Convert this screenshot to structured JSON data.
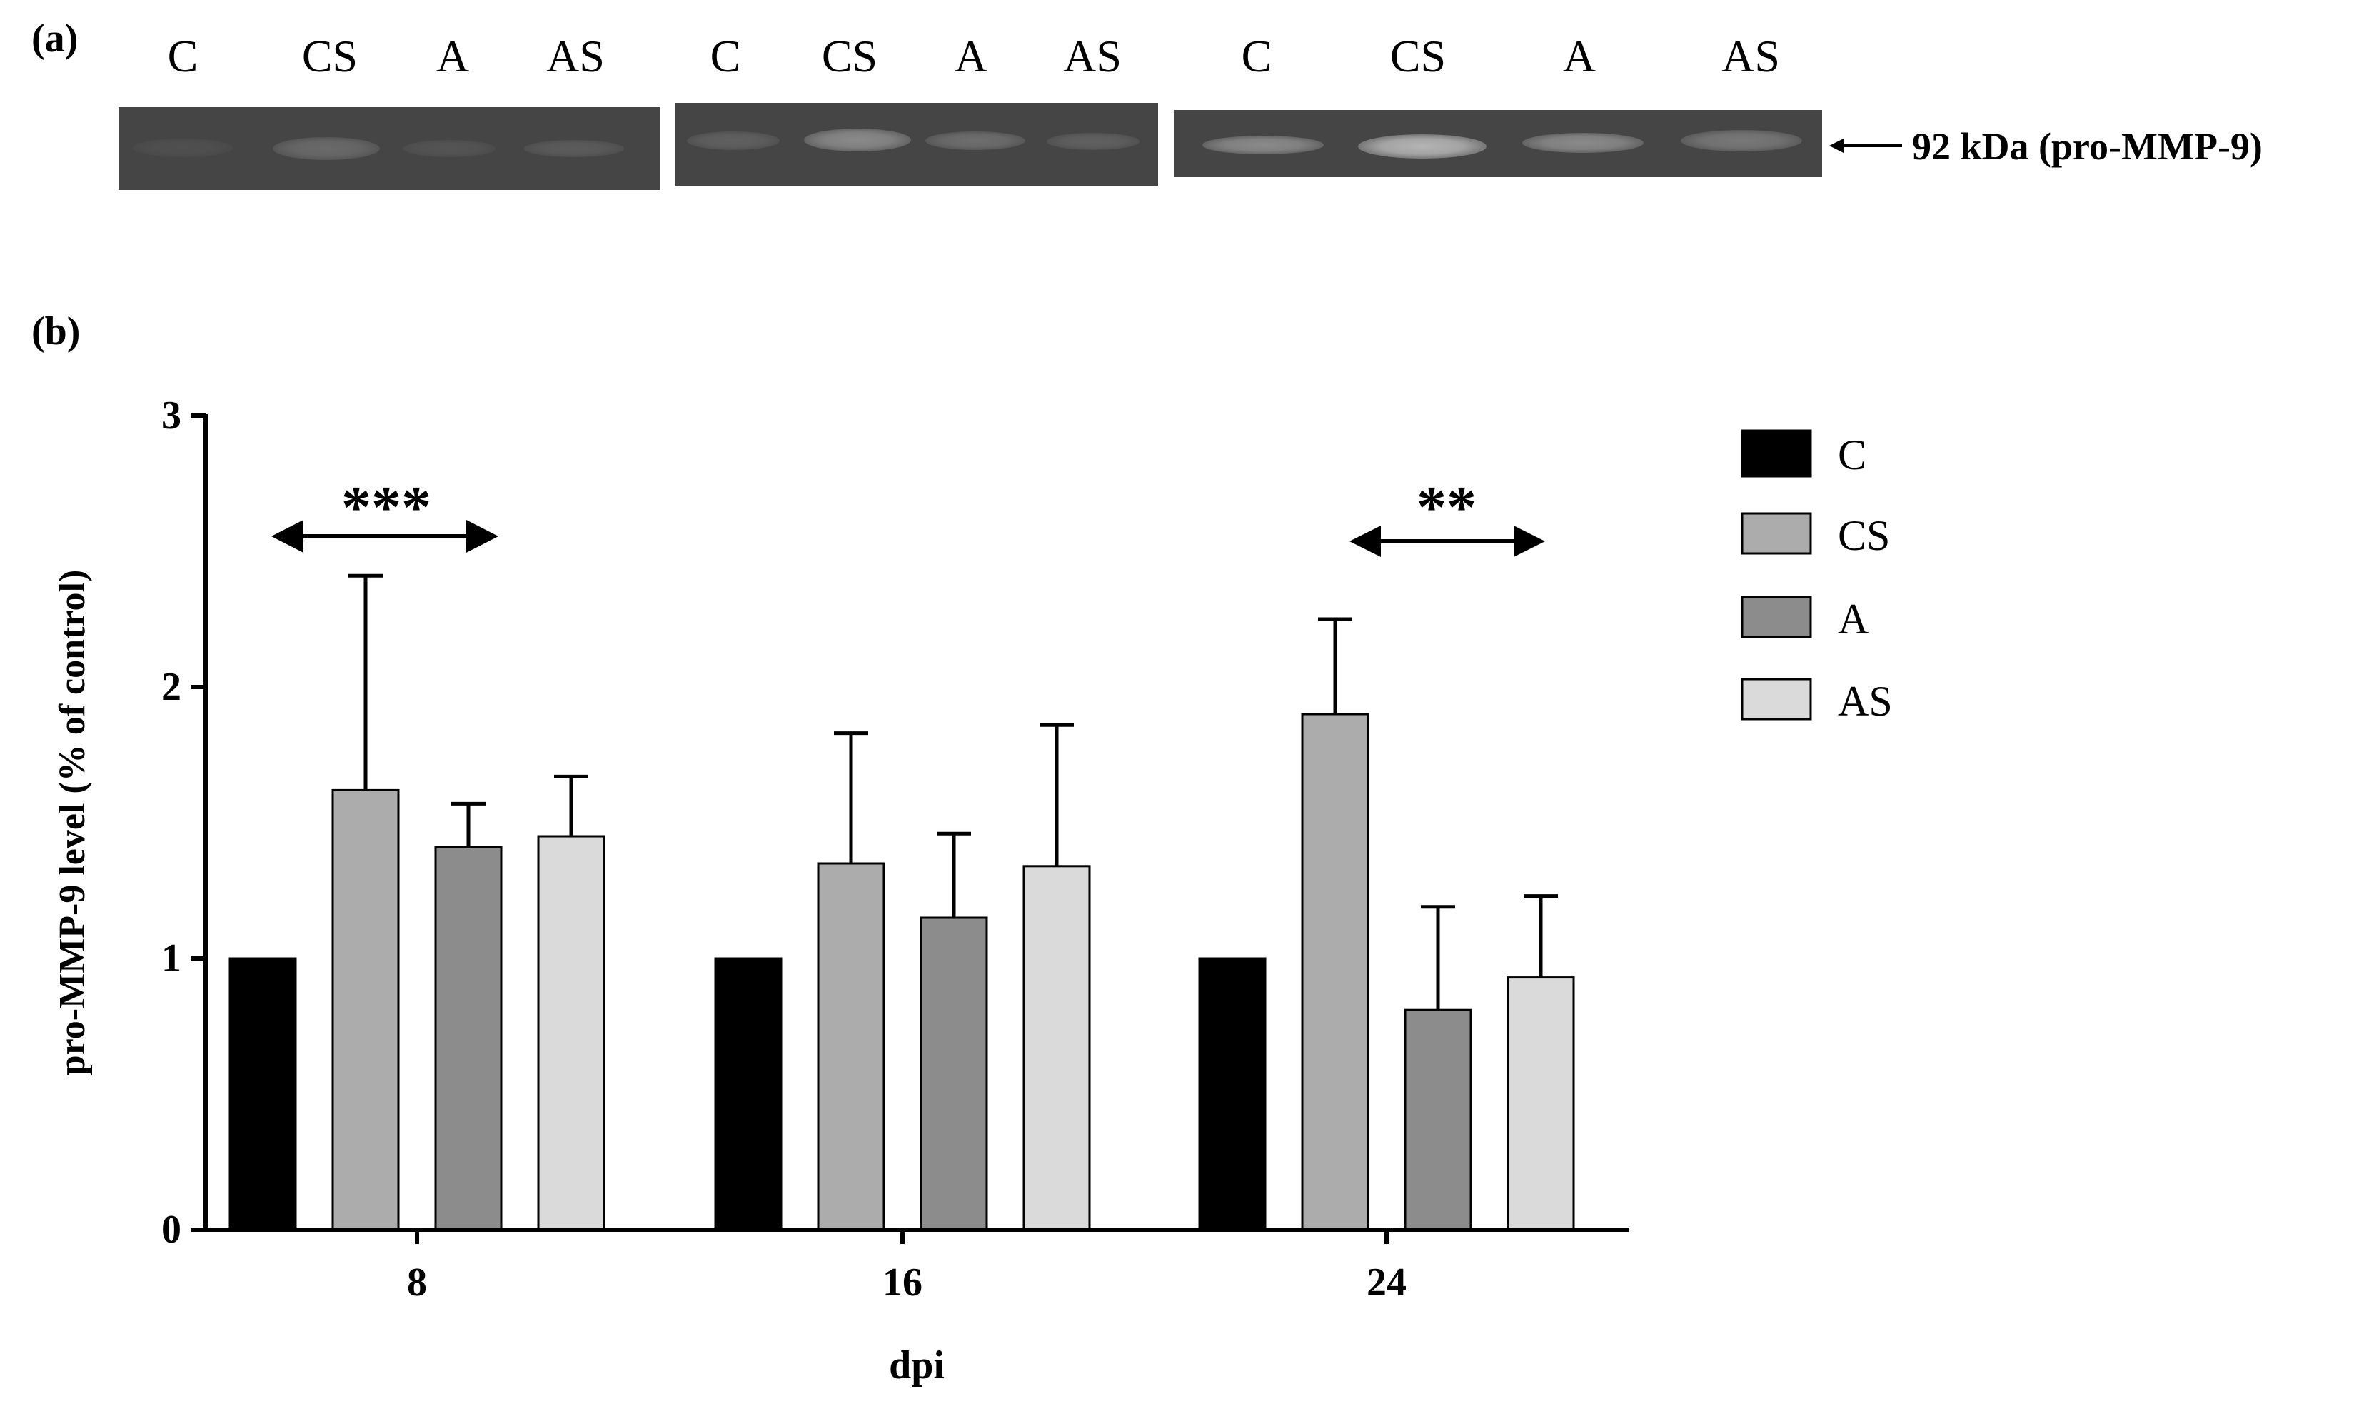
{
  "panel_a": {
    "label": "(a)",
    "blots": [
      {
        "lanes": [
          "C",
          "CS",
          "A",
          "AS"
        ],
        "band_intensity": [
          0.06,
          0.28,
          0.1,
          0.16
        ]
      },
      {
        "lanes": [
          "C",
          "CS",
          "A",
          "AS"
        ],
        "band_intensity": [
          0.2,
          0.55,
          0.32,
          0.2
        ]
      },
      {
        "lanes": [
          "C",
          "CS",
          "A",
          "AS"
        ],
        "band_intensity": [
          0.55,
          0.9,
          0.55,
          0.4
        ]
      }
    ],
    "marker_label": "92 kDa (pro-MMP-9)"
  },
  "panel_b": {
    "label": "(b)"
  },
  "colors": {
    "C": "#000000",
    "CS": "#acacac",
    "A": "#8c8c8c",
    "AS": "#dadada"
  },
  "chart_data": {
    "type": "bar",
    "title": "",
    "xlabel": "dpi",
    "ylabel": "pro-MMP-9  level (% of control)",
    "ylim": [
      0,
      3
    ],
    "yticks": [
      "0",
      "1",
      "2",
      "3"
    ],
    "categories": [
      "8",
      "16",
      "24"
    ],
    "series": [
      {
        "name": "C",
        "values": [
          1.0,
          1.0,
          1.0
        ],
        "errors": [
          0,
          0,
          0
        ]
      },
      {
        "name": "CS",
        "values": [
          1.62,
          1.35,
          1.9
        ],
        "errors": [
          0.79,
          0.48,
          0.35
        ]
      },
      {
        "name": "A",
        "values": [
          1.41,
          1.15,
          0.81
        ],
        "errors": [
          0.16,
          0.31,
          0.38
        ]
      },
      {
        "name": "AS",
        "values": [
          1.45,
          1.34,
          0.93
        ],
        "errors": [
          0.22,
          0.52,
          0.3
        ]
      }
    ],
    "legend_position": "top-right",
    "annotations": [
      {
        "text": "***",
        "category": "8"
      },
      {
        "text": "**",
        "category": "24"
      }
    ]
  }
}
